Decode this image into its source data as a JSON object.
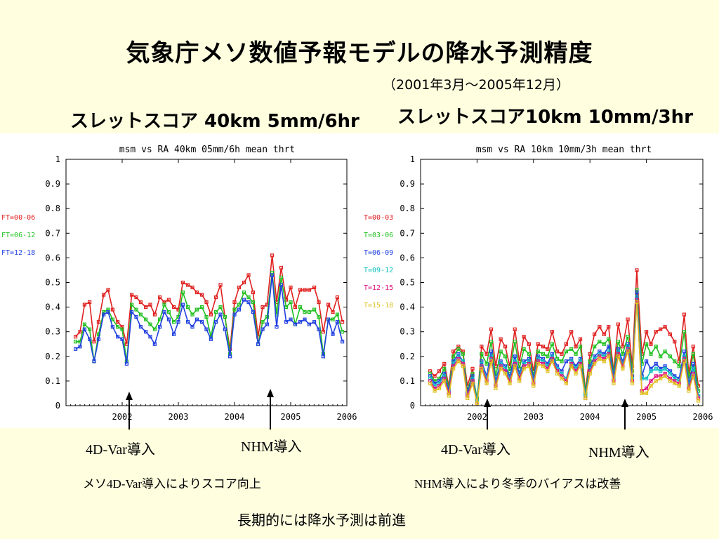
{
  "page": {
    "title": "気象庁メソ数値予報モデルの降水予測精度",
    "subtitle": "（2001年3月～2005年12月）",
    "left_heading": "スレットスコア 40km 5mm/6hr",
    "right_heading": "スレットスコア10km 10mm/3hr",
    "annotations": {
      "left_4dvar": "4D-Var導入",
      "left_nhm": "NHM導入",
      "right_4dvar": "4D-Var導入",
      "right_nhm": "NHM導入",
      "left_note": "メソ4D-Var導入によりスコア向上",
      "right_note": "NHM導入により冬季のバイアスは改善",
      "conclusion": "長期的には降水予測は前進"
    }
  },
  "chart_data": [
    {
      "type": "line",
      "title": "msm vs RA 40km 05mm/6h mean thrt",
      "xlabel": "",
      "ylabel": "",
      "ylim": [
        0,
        1
      ],
      "xlim": [
        2001.0,
        2006.0
      ],
      "yticks": [
        "0",
        "0.1",
        "0.2",
        "0.3",
        "0.4",
        "0.5",
        "0.6",
        "0.7",
        "0.8",
        "0.9",
        "1"
      ],
      "xticks": [
        "2002",
        "2003",
        "2004",
        "2005",
        "2006"
      ],
      "grid": false,
      "legend": "left",
      "x": [
        2001.17,
        2001.25,
        2001.33,
        2001.42,
        2001.5,
        2001.58,
        2001.67,
        2001.75,
        2001.83,
        2001.92,
        2002.0,
        2002.08,
        2002.17,
        2002.25,
        2002.33,
        2002.42,
        2002.5,
        2002.58,
        2002.67,
        2002.75,
        2002.83,
        2002.92,
        2003.0,
        2003.08,
        2003.17,
        2003.25,
        2003.33,
        2003.42,
        2003.5,
        2003.58,
        2003.67,
        2003.75,
        2003.83,
        2003.92,
        2004.0,
        2004.08,
        2004.17,
        2004.25,
        2004.33,
        2004.42,
        2004.5,
        2004.58,
        2004.67,
        2004.75,
        2004.83,
        2004.92,
        2005.0,
        2005.08,
        2005.17,
        2005.25,
        2005.33,
        2005.42,
        2005.5,
        2005.58,
        2005.67,
        2005.75,
        2005.83,
        2005.92
      ],
      "series": [
        {
          "name": "FT=00-06",
          "color": "#e02020",
          "values": [
            0.28,
            0.3,
            0.41,
            0.42,
            0.26,
            0.34,
            0.45,
            0.47,
            0.39,
            0.34,
            0.32,
            0.25,
            0.45,
            0.44,
            0.42,
            0.4,
            0.41,
            0.37,
            0.44,
            0.42,
            0.43,
            0.4,
            0.39,
            0.5,
            0.49,
            0.48,
            0.46,
            0.45,
            0.42,
            0.37,
            0.44,
            0.49,
            0.36,
            0.23,
            0.42,
            0.48,
            0.5,
            0.53,
            0.46,
            0.28,
            0.4,
            0.41,
            0.61,
            0.42,
            0.56,
            0.43,
            0.48,
            0.4,
            0.47,
            0.47,
            0.47,
            0.48,
            0.42,
            0.3,
            0.41,
            0.38,
            0.44,
            0.34
          ]
        },
        {
          "name": "FT=06-12",
          "color": "#20c020",
          "values": [
            0.26,
            0.26,
            0.33,
            0.31,
            0.18,
            0.29,
            0.38,
            0.39,
            0.35,
            0.32,
            0.31,
            0.18,
            0.41,
            0.39,
            0.37,
            0.35,
            0.33,
            0.31,
            0.35,
            0.41,
            0.38,
            0.34,
            0.36,
            0.46,
            0.4,
            0.37,
            0.39,
            0.4,
            0.36,
            0.28,
            0.38,
            0.4,
            0.36,
            0.21,
            0.39,
            0.41,
            0.46,
            0.44,
            0.42,
            0.25,
            0.34,
            0.36,
            0.54,
            0.37,
            0.52,
            0.4,
            0.42,
            0.33,
            0.4,
            0.38,
            0.38,
            0.39,
            0.36,
            0.21,
            0.35,
            0.35,
            0.37,
            0.3
          ]
        },
        {
          "name": "FT=12-18",
          "color": "#2040e0",
          "values": [
            0.23,
            0.24,
            0.31,
            0.27,
            0.18,
            0.27,
            0.37,
            0.38,
            0.32,
            0.28,
            0.27,
            0.17,
            0.38,
            0.36,
            0.32,
            0.3,
            0.28,
            0.25,
            0.32,
            0.38,
            0.35,
            0.29,
            0.34,
            0.41,
            0.34,
            0.32,
            0.35,
            0.34,
            0.31,
            0.27,
            0.34,
            0.37,
            0.31,
            0.2,
            0.37,
            0.39,
            0.43,
            0.42,
            0.38,
            0.25,
            0.31,
            0.33,
            0.53,
            0.32,
            0.49,
            0.34,
            0.35,
            0.33,
            0.34,
            0.35,
            0.33,
            0.34,
            0.31,
            0.2,
            0.35,
            0.29,
            0.34,
            0.26
          ]
        }
      ]
    },
    {
      "type": "line",
      "title": "msm vs RA 10km 10mm/3h mean thrt",
      "xlabel": "",
      "ylabel": "",
      "ylim": [
        0,
        1
      ],
      "xlim": [
        2001.0,
        2006.0
      ],
      "yticks": [
        "0",
        "0.1",
        "0.2",
        "0.3",
        "0.4",
        "0.5",
        "0.6",
        "0.7",
        "0.8",
        "0.9",
        "1"
      ],
      "xticks": [
        "2002",
        "2003",
        "2004",
        "2005",
        "2006"
      ],
      "grid": false,
      "legend": "left",
      "x": [
        2001.17,
        2001.25,
        2001.33,
        2001.42,
        2001.5,
        2001.58,
        2001.67,
        2001.75,
        2001.83,
        2001.92,
        2002.0,
        2002.08,
        2002.17,
        2002.25,
        2002.33,
        2002.42,
        2002.5,
        2002.58,
        2002.67,
        2002.75,
        2002.83,
        2002.92,
        2003.0,
        2003.08,
        2003.17,
        2003.25,
        2003.33,
        2003.42,
        2003.5,
        2003.58,
        2003.67,
        2003.75,
        2003.83,
        2003.92,
        2004.0,
        2004.08,
        2004.17,
        2004.25,
        2004.33,
        2004.42,
        2004.5,
        2004.58,
        2004.67,
        2004.75,
        2004.83,
        2004.92,
        2005.0,
        2005.08,
        2005.17,
        2005.25,
        2005.33,
        2005.42,
        2005.5,
        2005.58,
        2005.67,
        2005.75,
        2005.83,
        2005.92
      ],
      "series": [
        {
          "name": "T=00-03",
          "color": "#e02020",
          "values": [
            0.14,
            0.12,
            0.14,
            0.17,
            0.08,
            0.22,
            0.24,
            0.22,
            0.08,
            0.15,
            0.01,
            0.24,
            0.21,
            0.31,
            0.16,
            0.27,
            0.24,
            0.16,
            0.31,
            0.18,
            0.28,
            0.25,
            0.14,
            0.25,
            0.24,
            0.23,
            0.3,
            0.22,
            0.21,
            0.25,
            0.3,
            0.24,
            0.27,
            0.06,
            0.21,
            0.29,
            0.32,
            0.29,
            0.32,
            0.14,
            0.33,
            0.24,
            0.35,
            0.16,
            0.55,
            0.21,
            0.3,
            0.25,
            0.3,
            0.31,
            0.32,
            0.29,
            0.26,
            0.18,
            0.37,
            0.13,
            0.24,
            0.08
          ]
        },
        {
          "name": "T=03-06",
          "color": "#20c020",
          "values": [
            0.13,
            0.1,
            0.11,
            0.15,
            0.07,
            0.2,
            0.23,
            0.21,
            0.06,
            0.13,
            0.03,
            0.21,
            0.17,
            0.26,
            0.12,
            0.22,
            0.2,
            0.14,
            0.26,
            0.15,
            0.23,
            0.21,
            0.12,
            0.22,
            0.21,
            0.2,
            0.25,
            0.19,
            0.18,
            0.22,
            0.23,
            0.21,
            0.24,
            0.05,
            0.18,
            0.24,
            0.26,
            0.25,
            0.27,
            0.13,
            0.26,
            0.21,
            0.28,
            0.14,
            0.47,
            0.17,
            0.25,
            0.21,
            0.24,
            0.2,
            0.22,
            0.2,
            0.18,
            0.16,
            0.3,
            0.11,
            0.21,
            0.06
          ]
        },
        {
          "name": "T=06-09",
          "color": "#2040e0",
          "values": [
            0.12,
            0.09,
            0.1,
            0.13,
            0.06,
            0.18,
            0.21,
            0.18,
            0.05,
            0.12,
            0.02,
            0.18,
            0.12,
            0.22,
            0.1,
            0.18,
            0.16,
            0.12,
            0.2,
            0.13,
            0.18,
            0.19,
            0.11,
            0.2,
            0.19,
            0.17,
            0.21,
            0.16,
            0.14,
            0.18,
            0.19,
            0.16,
            0.19,
            0.04,
            0.16,
            0.2,
            0.22,
            0.21,
            0.24,
            0.12,
            0.23,
            0.18,
            0.25,
            0.12,
            0.46,
            0.12,
            0.18,
            0.15,
            0.17,
            0.15,
            0.16,
            0.14,
            0.12,
            0.11,
            0.22,
            0.09,
            0.17,
            0.04
          ]
        },
        {
          "name": "T=09-12",
          "color": "#10c0c0",
          "values": [
            0.11,
            0.08,
            0.09,
            0.12,
            0.05,
            0.17,
            0.2,
            0.18,
            0.04,
            0.11,
            0.02,
            0.17,
            0.11,
            0.2,
            0.09,
            0.17,
            0.15,
            0.11,
            0.18,
            0.12,
            0.17,
            0.18,
            0.1,
            0.19,
            0.18,
            0.16,
            0.2,
            0.15,
            0.13,
            0.11,
            0.18,
            0.15,
            0.18,
            0.04,
            0.15,
            0.19,
            0.21,
            0.2,
            0.22,
            0.11,
            0.22,
            0.17,
            0.24,
            0.11,
            0.44,
            0.11,
            0.11,
            0.14,
            0.15,
            0.14,
            0.15,
            0.13,
            0.11,
            0.1,
            0.2,
            0.08,
            0.15,
            0.04
          ]
        },
        {
          "name": "T=12-15",
          "color": "#e01080",
          "values": [
            0.1,
            0.07,
            0.08,
            0.11,
            0.05,
            0.16,
            0.19,
            0.17,
            0.04,
            0.1,
            0.01,
            0.16,
            0.1,
            0.19,
            0.08,
            0.16,
            0.14,
            0.1,
            0.17,
            0.11,
            0.16,
            0.17,
            0.09,
            0.18,
            0.17,
            0.15,
            0.19,
            0.14,
            0.12,
            0.1,
            0.17,
            0.14,
            0.17,
            0.03,
            0.14,
            0.18,
            0.2,
            0.19,
            0.21,
            0.1,
            0.21,
            0.16,
            0.23,
            0.1,
            0.43,
            0.06,
            0.07,
            0.1,
            0.12,
            0.12,
            0.13,
            0.11,
            0.1,
            0.09,
            0.19,
            0.07,
            0.13,
            0.03
          ]
        },
        {
          "name": "T=15-18",
          "color": "#e0c020",
          "values": [
            0.09,
            0.06,
            0.07,
            0.1,
            0.04,
            0.15,
            0.18,
            0.16,
            0.03,
            0.09,
            0.01,
            0.15,
            0.09,
            0.18,
            0.07,
            0.15,
            0.13,
            0.09,
            0.16,
            0.1,
            0.15,
            0.16,
            0.08,
            0.17,
            0.16,
            0.14,
            0.18,
            0.13,
            0.11,
            0.09,
            0.16,
            0.13,
            0.16,
            0.03,
            0.13,
            0.17,
            0.19,
            0.18,
            0.2,
            0.09,
            0.2,
            0.15,
            0.22,
            0.09,
            0.42,
            0.05,
            0.05,
            0.08,
            0.1,
            0.11,
            0.12,
            0.1,
            0.09,
            0.08,
            0.18,
            0.06,
            0.12,
            0.02
          ]
        }
      ]
    }
  ]
}
